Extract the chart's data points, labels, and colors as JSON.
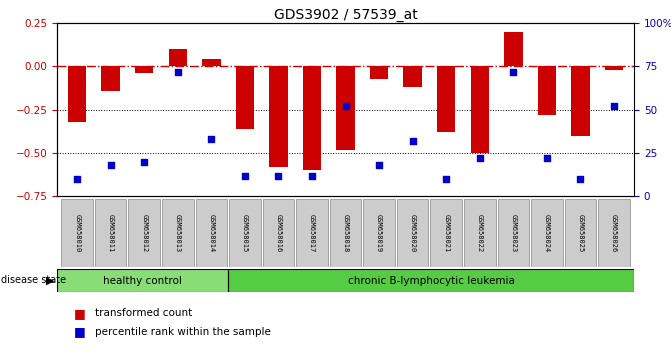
{
  "title": "GDS3902 / 57539_at",
  "samples": [
    "GSM658010",
    "GSM658011",
    "GSM658012",
    "GSM658013",
    "GSM658014",
    "GSM658015",
    "GSM658016",
    "GSM658017",
    "GSM658018",
    "GSM658019",
    "GSM658020",
    "GSM658021",
    "GSM658022",
    "GSM658023",
    "GSM658024",
    "GSM658025",
    "GSM658026"
  ],
  "bar_values": [
    -0.32,
    -0.14,
    -0.04,
    0.1,
    0.04,
    -0.36,
    -0.58,
    -0.6,
    -0.48,
    -0.07,
    -0.12,
    -0.38,
    -0.5,
    0.2,
    -0.28,
    -0.4,
    -0.02
  ],
  "dot_values": [
    10,
    18,
    20,
    72,
    33,
    12,
    12,
    12,
    52,
    18,
    32,
    10,
    22,
    72,
    22,
    10,
    52
  ],
  "bar_color": "#CC0000",
  "dot_color": "#0000CC",
  "hline_color": "#CC0000",
  "dotted_lines": [
    -0.25,
    -0.5
  ],
  "ylim": [
    -0.75,
    0.25
  ],
  "yticks_left": [
    0.25,
    0,
    -0.25,
    -0.5,
    -0.75
  ],
  "yticks_right": [
    100,
    75,
    50,
    25,
    0
  ],
  "right_axis_color": "#0000CC",
  "healthy_count": 5,
  "healthy_label": "healthy control",
  "healthy_color": "#88DD77",
  "leukemia_label": "chronic B-lymphocytic leukemia",
  "leukemia_color": "#55CC44",
  "disease_state_label": "disease state",
  "legend_bar_label": "transformed count",
  "legend_dot_label": "percentile rank within the sample",
  "label_box_color": "#CCCCCC",
  "label_box_edge": "#888888"
}
